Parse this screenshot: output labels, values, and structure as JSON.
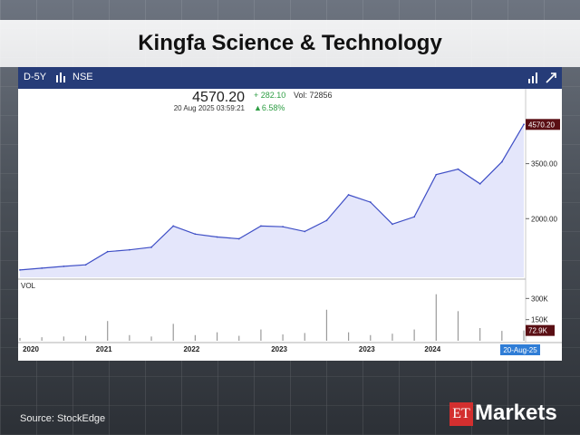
{
  "title": "Kingfa Science & Technology",
  "source": "Source:  StockEdge",
  "brand": {
    "et": "ET",
    "markets": "Markets"
  },
  "toolbar": {
    "period": "D-5Y",
    "exchange": "NSE"
  },
  "quote": {
    "price": "4570.20",
    "change": "+ 282.10",
    "vol": "Vol: 72856",
    "time": "20 Aug 2025 03:59:21",
    "pct": "▲6.58%"
  },
  "colors": {
    "line": "#3f4fc6",
    "area": "#e4e6fb",
    "up": "#2e9e44",
    "label_bg": "#5a0f14",
    "date_bg": "#2f7dd6"
  },
  "chart_data": {
    "type": "area",
    "price": {
      "x": [
        "2020-01",
        "2020-04",
        "2020-07",
        "2020-10",
        "2021-01",
        "2021-04",
        "2021-07",
        "2021-10",
        "2022-01",
        "2022-04",
        "2022-07",
        "2022-10",
        "2023-01",
        "2023-04",
        "2023-07",
        "2023-10",
        "2024-01",
        "2024-04",
        "2024-07",
        "2024-10",
        "2025-01",
        "2025-04",
        "2025-07",
        "2025-08"
      ],
      "y": [
        600,
        650,
        700,
        740,
        1100,
        1150,
        1220,
        1800,
        1580,
        1500,
        1450,
        1800,
        1780,
        1650,
        1950,
        2650,
        2450,
        1850,
        2050,
        3200,
        3350,
        2950,
        3550,
        4570
      ]
    },
    "volume": {
      "x": [
        "2020-01",
        "2020-04",
        "2020-07",
        "2020-10",
        "2021-01",
        "2021-04",
        "2021-07",
        "2021-10",
        "2022-01",
        "2022-04",
        "2022-07",
        "2022-10",
        "2023-01",
        "2023-04",
        "2023-07",
        "2023-10",
        "2024-01",
        "2024-04",
        "2024-07",
        "2024-10",
        "2025-01",
        "2025-04",
        "2025-07",
        "2025-08"
      ],
      "y": [
        20000,
        25000,
        30000,
        35000,
        140000,
        40000,
        30000,
        120000,
        40000,
        60000,
        35000,
        80000,
        45000,
        55000,
        220000,
        60000,
        40000,
        50000,
        80000,
        330000,
        210000,
        90000,
        70000,
        72900
      ]
    },
    "x_ticks": [
      "2020",
      "2021",
      "2022",
      "2023",
      "2023",
      "2024"
    ],
    "y_ticks": [
      "3500.00",
      "2000.00"
    ],
    "vol_ticks": [
      "300K",
      "150K"
    ],
    "price_label": "4570.20",
    "vol_label": "72.9K",
    "date_label": "20-Aug-25",
    "vol_title": "VOL",
    "ylim": [
      400,
      4800
    ],
    "vol_ylim": [
      0,
      360000
    ]
  }
}
